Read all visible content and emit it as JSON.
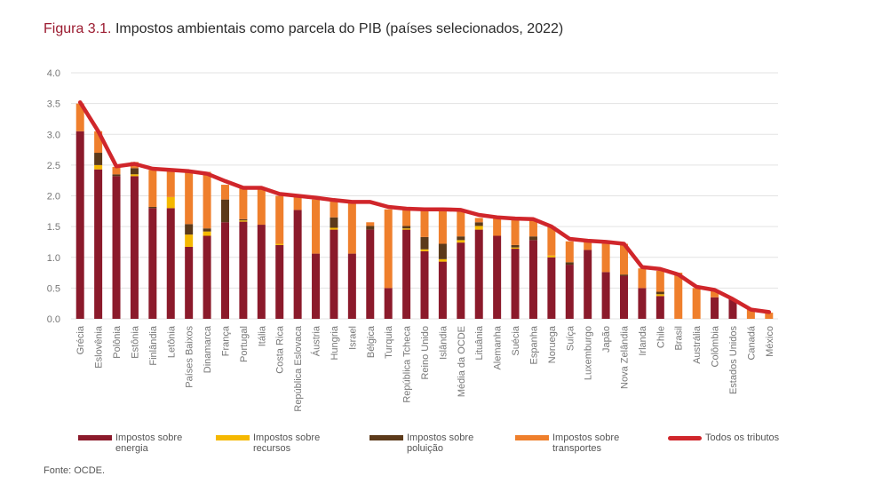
{
  "figure": {
    "prefix": "Figura 3.1.",
    "title": "Impostos ambientais como parcela do PIB (países selecionados, 2022)",
    "source": "Fonte: OCDE."
  },
  "colors": {
    "energia": "#8b1a2b",
    "recursos": "#f5b800",
    "poluicao": "#5c3a1a",
    "transportes": "#ef7f2c",
    "total": "#d0262b",
    "grid": "#e3e3e3",
    "axis_text": "#777777"
  },
  "chart_data": {
    "type": "bar",
    "stacked": true,
    "title": "Impostos ambientais como parcela do PIB (países selecionados, 2022)",
    "xlabel": "",
    "ylabel": "",
    "ylim": [
      0,
      4
    ],
    "yticks": [
      "0.0",
      "0.5",
      "1.0",
      "1.5",
      "2.0",
      "2.5",
      "3.0",
      "3.5",
      "4.0"
    ],
    "grid": true,
    "legend_position": "bottom",
    "categories": [
      "Grécia",
      "Eslovênia",
      "Polônia",
      "Estônia",
      "Finlândia",
      "Letônia",
      "Países Baixos",
      "Dinamarca",
      "França",
      "Portugal",
      "Itália",
      "Costa Rica",
      "República Eslovaca",
      "Áustria",
      "Hungria",
      "Israel",
      "Bélgica",
      "Turquia",
      "República Tcheca",
      "Reino Unido",
      "Islândia",
      "Média da OCDE",
      "Lituânia",
      "Alemanha",
      "Suécia",
      "Espanha",
      "Noruega",
      "Suíça",
      "Luxemburgo",
      "Japão",
      "Nova Zelândia",
      "Irlanda",
      "Chile",
      "Brasil",
      "Austrália",
      "Colômbia",
      "Estados Unidos",
      "Canadá",
      "México"
    ],
    "series": [
      {
        "name": "Impostos sobre energia",
        "key": "energia",
        "values": [
          3.05,
          2.43,
          2.32,
          2.32,
          1.8,
          1.8,
          1.17,
          1.35,
          1.57,
          1.58,
          1.53,
          1.2,
          1.77,
          1.06,
          1.45,
          1.06,
          1.45,
          0.5,
          1.45,
          1.1,
          0.93,
          1.24,
          1.45,
          1.35,
          1.14,
          1.28,
          1.0,
          0.88,
          1.12,
          0.76,
          0.7,
          0.5,
          0.37,
          0.0,
          0.0,
          0.35,
          0.32,
          0.0,
          0.0
        ]
      },
      {
        "name": "Impostos sobre recursos",
        "key": "recursos",
        "values": [
          0.0,
          0.07,
          0.0,
          0.03,
          0.0,
          0.18,
          0.2,
          0.07,
          0.0,
          0.02,
          0.0,
          0.02,
          0.0,
          0.0,
          0.03,
          0.0,
          0.0,
          0.0,
          0.02,
          0.03,
          0.04,
          0.04,
          0.06,
          0.0,
          0.02,
          0.0,
          0.03,
          0.0,
          0.0,
          0.0,
          0.0,
          0.0,
          0.03,
          0.0,
          0.0,
          0.0,
          0.0,
          0.0,
          0.0
        ]
      },
      {
        "name": "Impostos sobre poluição",
        "key": "poluicao",
        "values": [
          0.0,
          0.2,
          0.03,
          0.1,
          0.02,
          0.0,
          0.17,
          0.05,
          0.37,
          0.02,
          0.0,
          0.0,
          0.0,
          0.0,
          0.17,
          0.0,
          0.06,
          0.0,
          0.04,
          0.2,
          0.25,
          0.06,
          0.06,
          0.0,
          0.04,
          0.06,
          0.0,
          0.04,
          0.0,
          0.0,
          0.02,
          0.0,
          0.04,
          0.0,
          0.0,
          0.0,
          0.0,
          0.0,
          0.0
        ]
      },
      {
        "name": "Impostos sobre transportes",
        "key": "transportes",
        "values": [
          0.45,
          0.35,
          0.12,
          0.1,
          0.6,
          0.45,
          0.85,
          0.92,
          0.24,
          0.5,
          0.6,
          0.78,
          0.21,
          0.88,
          0.27,
          0.85,
          0.06,
          1.28,
          0.27,
          0.45,
          0.56,
          0.43,
          0.07,
          0.32,
          0.43,
          0.26,
          0.47,
          0.34,
          0.13,
          0.48,
          0.5,
          0.32,
          0.34,
          0.75,
          0.5,
          0.1,
          0.0,
          0.15,
          0.1
        ]
      },
      {
        "name": "Todos os tributos",
        "key": "total",
        "kind": "line",
        "values": [
          3.52,
          3.05,
          2.48,
          2.52,
          2.44,
          2.42,
          2.4,
          2.36,
          2.24,
          2.13,
          2.13,
          2.03,
          2.0,
          1.97,
          1.93,
          1.9,
          1.9,
          1.82,
          1.79,
          1.78,
          1.78,
          1.77,
          1.69,
          1.65,
          1.63,
          1.62,
          1.5,
          1.3,
          1.27,
          1.25,
          1.22,
          0.84,
          0.81,
          0.72,
          0.52,
          0.47,
          0.32,
          0.15,
          0.11
        ]
      }
    ]
  },
  "legend": [
    {
      "label": "Impostos sobre energia",
      "key": "energia"
    },
    {
      "label": "Impostos sobre recursos",
      "key": "recursos"
    },
    {
      "label": "Impostos sobre poluição",
      "key": "poluicao"
    },
    {
      "label": "Impostos sobre transportes",
      "key": "transportes"
    },
    {
      "label": "Todos os tributos",
      "key": "total"
    }
  ]
}
